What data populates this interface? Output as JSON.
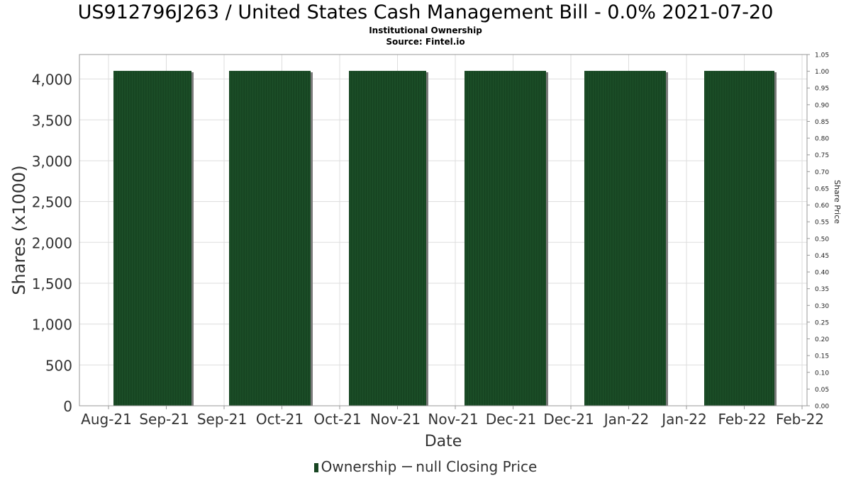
{
  "title": "US912796J263 / United States Cash Management Bill - 0.0% 2021-07-20",
  "subtitle": "Institutional Ownership",
  "source": "Source: Fintel.io",
  "legend": {
    "ownership": "Ownership",
    "price": "null Closing Price"
  },
  "colors": {
    "bar": "#174522",
    "bar_shadow": "#7a7a7a",
    "grid": "#dddddd",
    "axis": "#999999"
  },
  "chart_data": {
    "type": "bar",
    "xlabel": "Date",
    "ylabel": "Shares (x1000)",
    "y2label": "Share Price",
    "ylim": [
      0,
      4300
    ],
    "y2lim": [
      0,
      1.05
    ],
    "yticks": [
      0,
      500,
      1000,
      1500,
      2000,
      2500,
      3000,
      3500,
      4000
    ],
    "yticklabels": [
      "0",
      "500",
      "1,000",
      "1,500",
      "2,000",
      "2,500",
      "3,000",
      "3,500",
      "4,000"
    ],
    "y2ticks": [
      "0.00",
      "0.05",
      "0.10",
      "0.15",
      "0.20",
      "0.25",
      "0.30",
      "0.35",
      "0.40",
      "0.45",
      "0.50",
      "0.55",
      "0.60",
      "0.65",
      "0.70",
      "0.75",
      "0.80",
      "0.85",
      "0.90",
      "0.95",
      "1.00",
      "1.05"
    ],
    "xticks": [
      "Aug-21",
      "Sep-21",
      "Sep-21",
      "Oct-21",
      "Oct-21",
      "Nov-21",
      "Nov-21",
      "Dec-21",
      "Dec-21",
      "Jan-22",
      "Jan-22",
      "Feb-22",
      "Feb-22"
    ],
    "grid": true,
    "series": [
      {
        "name": "Ownership",
        "values": [
          4100,
          4100,
          4100,
          4100,
          4100,
          4100
        ]
      }
    ]
  }
}
